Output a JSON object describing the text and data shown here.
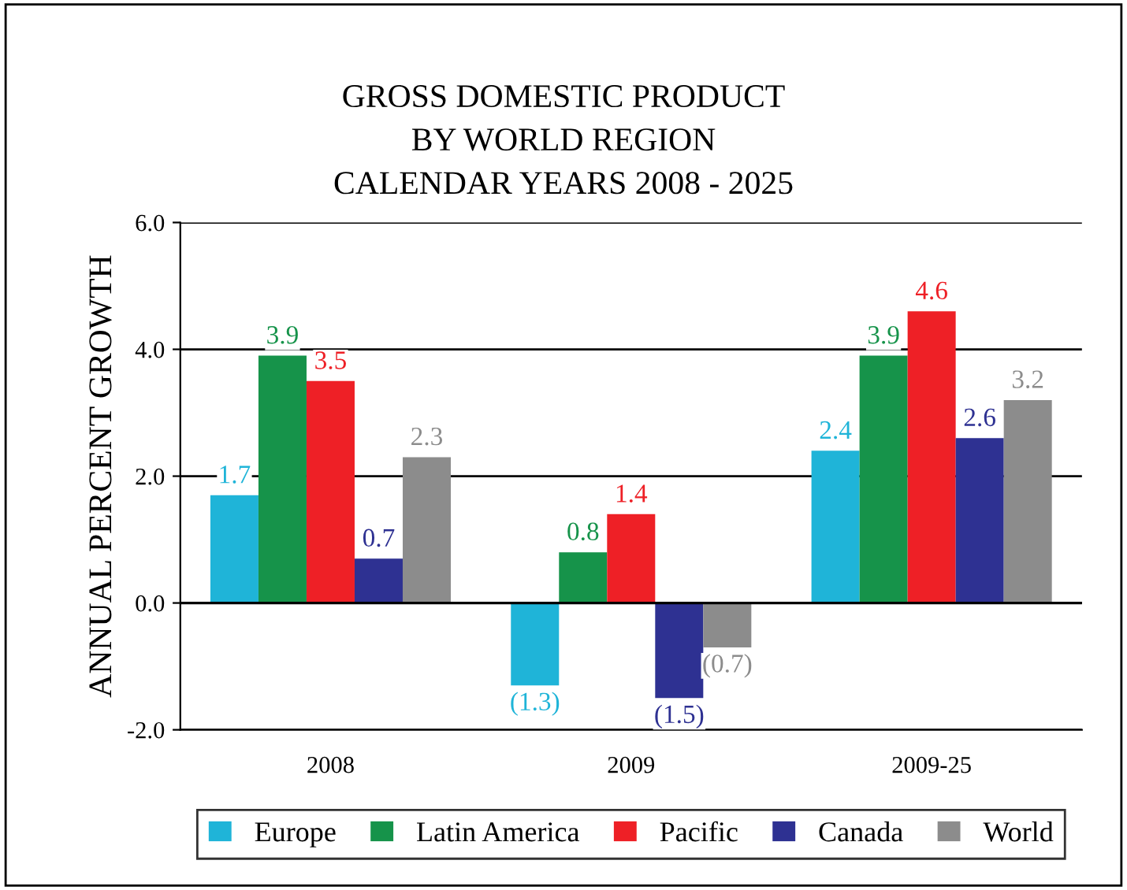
{
  "chart_data": {
    "type": "bar",
    "title": "GROSS DOMESTIC PRODUCT\nBY WORLD REGION\nCALENDAR YEARS 2008 - 2025",
    "ylabel": "ANNUAL PERCENT GROWTH",
    "categories": [
      "2008",
      "2009",
      "2009-25"
    ],
    "series": [
      {
        "name": "Europe",
        "color": "#1fb4d8",
        "values": [
          1.7,
          -1.3,
          2.4
        ],
        "value_labels": [
          "1.7",
          "(1.3)",
          "2.4"
        ]
      },
      {
        "name": "Latin America",
        "color": "#16934a",
        "values": [
          3.9,
          0.8,
          3.9
        ],
        "value_labels": [
          "3.9",
          "0.8",
          "3.9"
        ]
      },
      {
        "name": "Pacific",
        "color": "#ee2026",
        "values": [
          3.5,
          1.4,
          4.6
        ],
        "value_labels": [
          "3.5",
          "1.4",
          "4.6"
        ]
      },
      {
        "name": "Canada",
        "color": "#2e3192",
        "values": [
          0.7,
          -1.5,
          2.6
        ],
        "value_labels": [
          "0.7",
          "(1.5)",
          "2.6"
        ]
      },
      {
        "name": "World",
        "color": "#8c8c8c",
        "values": [
          2.3,
          -0.7,
          3.2
        ],
        "value_labels": [
          "2.3",
          "(0.7)",
          "3.2"
        ]
      }
    ],
    "ylim": [
      -2.0,
      6.0
    ],
    "yticks": [
      {
        "value": -2,
        "label": "-2.0"
      },
      {
        "value": 0,
        "label": "0.0"
      },
      {
        "value": 2,
        "label": "2.0"
      },
      {
        "value": 4,
        "label": "4.0"
      },
      {
        "value": 6,
        "label": "6.0"
      }
    ],
    "grid": "y",
    "legend": "bottom"
  }
}
